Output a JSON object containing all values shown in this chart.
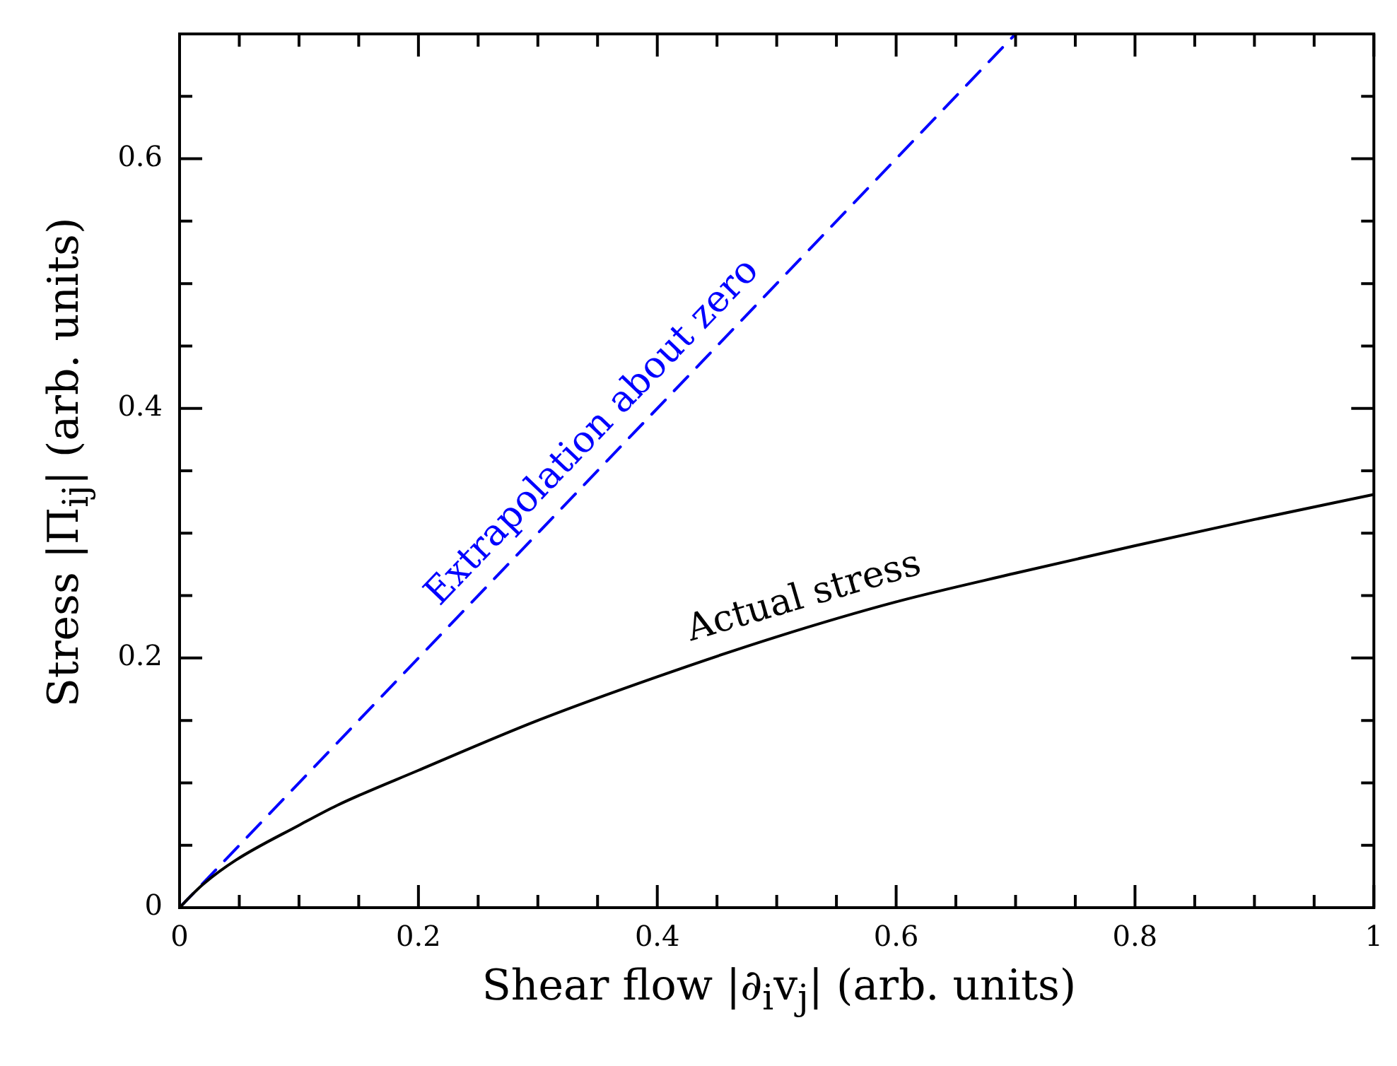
{
  "chart_data": {
    "type": "line",
    "xlabel": "Shear flow |∂$_{i}$v$_{j}$| (arb. units)",
    "ylabel": "Stress |Π$_{ij}$| (arb. units)",
    "xlim": [
      0,
      1
    ],
    "ylim": [
      0,
      0.7
    ],
    "xticks": [
      0,
      {
        "value": 0.05,
        "label": null
      },
      {
        "value": 0.1,
        "label": null
      },
      {
        "value": 0.15,
        "label": null
      },
      0.2,
      {
        "value": 0.25,
        "label": null
      },
      {
        "value": 0.3,
        "label": null
      },
      {
        "value": 0.35,
        "label": null
      },
      0.4,
      {
        "value": 0.45,
        "label": null
      },
      {
        "value": 0.5,
        "label": null
      },
      {
        "value": 0.55,
        "label": null
      },
      0.6,
      {
        "value": 0.65,
        "label": null
      },
      {
        "value": 0.7,
        "label": null
      },
      {
        "value": 0.75,
        "label": null
      },
      0.8,
      {
        "value": 0.85,
        "label": null
      },
      {
        "value": 0.9,
        "label": null
      },
      {
        "value": 0.95,
        "label": null
      },
      1
    ],
    "yticks": [
      0,
      {
        "value": 0.05,
        "label": null
      },
      {
        "value": 0.1,
        "label": null
      },
      {
        "value": 0.15,
        "label": null
      },
      0.2,
      {
        "value": 0.25,
        "label": null
      },
      {
        "value": 0.3,
        "label": null
      },
      {
        "value": 0.35,
        "label": null
      },
      0.4,
      {
        "value": 0.45,
        "label": null
      },
      {
        "value": 0.5,
        "label": null
      },
      {
        "value": 0.55,
        "label": null
      },
      0.6,
      {
        "value": 0.65,
        "label": null
      }
    ],
    "grid": false,
    "legend": false,
    "marker": "none",
    "series": [
      {
        "name": "Actual stress",
        "color": "#000000",
        "line_style": "solid",
        "x": [
          0,
          0.01,
          0.02,
          0.047,
          0.1,
          0.132,
          0.2,
          0.3,
          0.4,
          0.5,
          0.6,
          0.7,
          0.8,
          0.9,
          1
        ],
        "values": [
          0,
          0.01,
          0.019,
          0.038,
          0.066,
          0.082,
          0.11,
          0.15,
          0.185,
          0.217,
          0.245,
          0.268,
          0.29,
          0.311,
          0.331
        ]
      },
      {
        "name": "Extrapolation about zero",
        "color": "#0000ff",
        "line_style": "dashed",
        "x": [
          0,
          0.7
        ],
        "values": [
          0,
          0.7
        ]
      }
    ]
  }
}
